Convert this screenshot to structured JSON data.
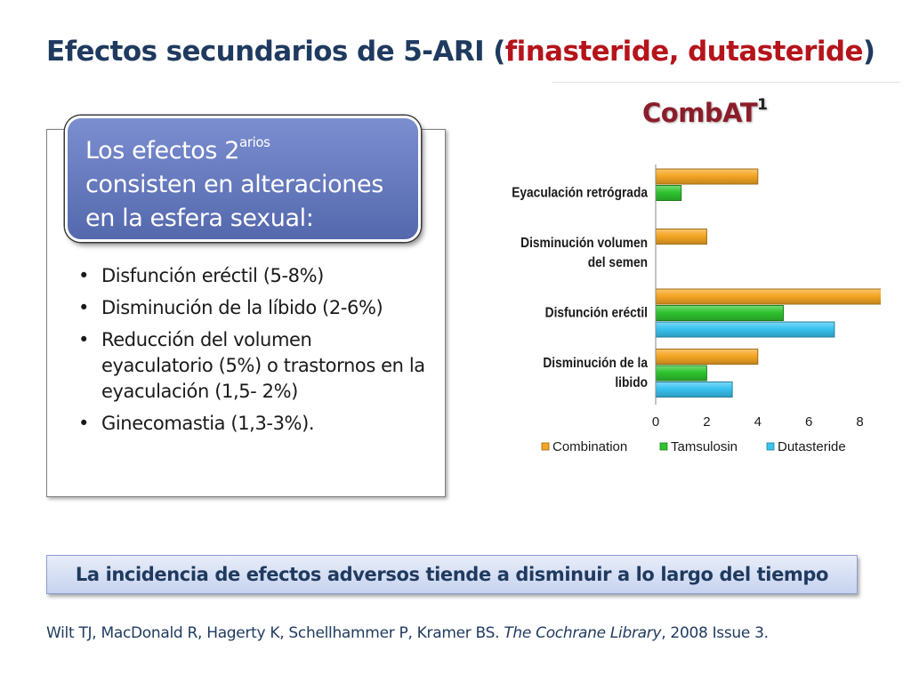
{
  "slide": {
    "title_prefix": "Efectos secundarios de 5-ARI (",
    "title_highlight": "finasteride, dutasteride",
    "title_suffix": ")",
    "callout": {
      "line1_text": "Los efectos 2",
      "line1_sup": "arios",
      "line2": "consisten en alteraciones",
      "line3": "en la esfera sexual:"
    },
    "bullets": [
      "Disfunción eréctil (5-8%)",
      "Disminución de la líbido (2-6%)",
      "Reducción del volumen eyaculatorio (5%) o trastornos en la eyaculación (1,5- 2%)",
      "Ginecomastia (1,3-3%)."
    ],
    "combat_label": "CombAT",
    "combat_sup": "1",
    "banner": "La incidencia de efectos adversos tiende a disminuir a lo largo del tiempo",
    "citation_authors": "Wilt TJ, MacDonald R, Hagerty K, Schellhammer P, Kramer BS. ",
    "citation_journal": "The Cochrane Library",
    "citation_rest": ", 2008 Issue 3."
  },
  "chart_data": {
    "type": "bar",
    "orientation": "horizontal",
    "categories": [
      [
        "Eyaculación retrógrada"
      ],
      [
        "Disminución volumen",
        "del semen"
      ],
      [
        "Disfunción eréctil"
      ],
      [
        "Disminución de la",
        "libido"
      ]
    ],
    "series": [
      {
        "name": "Combination",
        "values": [
          4,
          2,
          9,
          4
        ],
        "color": "#f5a623"
      },
      {
        "name": "Tamsulosin",
        "values": [
          1,
          0,
          5,
          2
        ],
        "color": "#2fc42f"
      },
      {
        "name": "Dutasteride",
        "values": [
          0,
          0,
          7,
          3
        ],
        "color": "#39c3f0"
      }
    ],
    "xticks": [
      0,
      2,
      4,
      6,
      8
    ],
    "xlim": [
      0,
      9
    ],
    "legend": "bottom",
    "grid": false
  }
}
